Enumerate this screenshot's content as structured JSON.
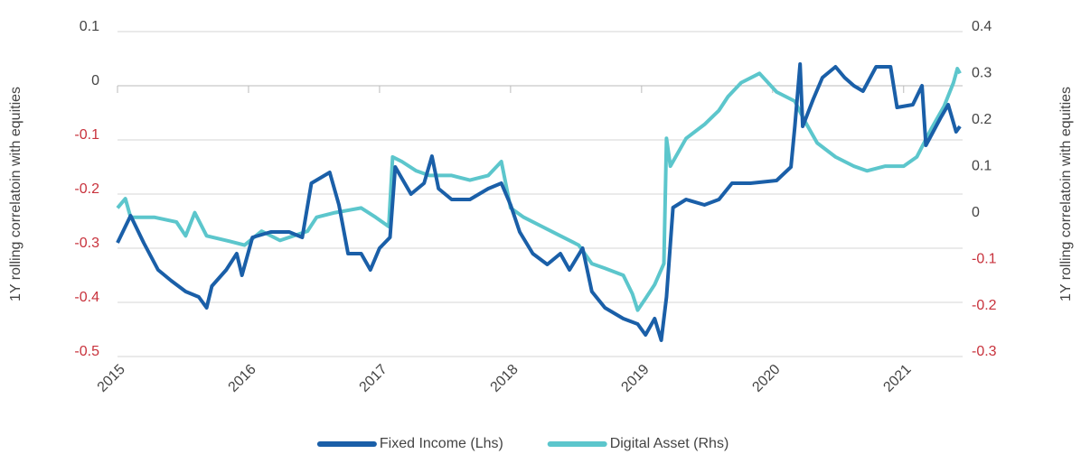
{
  "chart_data": {
    "type": "line",
    "y_label": "1Y rolling correlatoin with equities",
    "y2_label": "1Y rolling correlatoin with equities",
    "xlim": [
      2015,
      2021.45
    ],
    "xticks": [
      2015,
      2016,
      2017,
      2018,
      2019,
      2020,
      2021
    ],
    "ylim": [
      -0.5,
      0.1
    ],
    "yticks": [
      0.1,
      0,
      -0.1,
      -0.2,
      -0.3,
      -0.4,
      -0.5
    ],
    "y2lim": [
      -0.3,
      0.4
    ],
    "y2ticks": [
      0.4,
      0.3,
      0.2,
      0.1,
      0,
      -0.1,
      -0.2,
      -0.3
    ],
    "grid": true,
    "negative_tick_color": "#c8323c",
    "legend": "bottom",
    "series": [
      {
        "name": "Fixed Income (Lhs)",
        "color": "#1a5fa8",
        "x": [
          2015.0,
          2015.1,
          2015.2,
          2015.31,
          2015.41,
          2015.52,
          2015.62,
          2015.68,
          2015.72,
          2015.83,
          2015.91,
          2015.95,
          2016.03,
          2016.17,
          2016.31,
          2016.41,
          2016.48,
          2016.62,
          2016.69,
          2016.76,
          2016.86,
          2016.93,
          2017.0,
          2017.08,
          2017.12,
          2017.24,
          2017.34,
          2017.4,
          2017.45,
          2017.55,
          2017.69,
          2017.83,
          2017.93,
          2018.0,
          2018.07,
          2018.17,
          2018.28,
          2018.38,
          2018.45,
          2018.55,
          2018.62,
          2018.72,
          2018.86,
          2018.97,
          2019.03,
          2019.1,
          2019.15,
          2019.19,
          2019.24,
          2019.34,
          2019.48,
          2019.59,
          2019.69,
          2019.83,
          2020.03,
          2020.14,
          2020.17,
          2020.21,
          2020.23,
          2020.31,
          2020.38,
          2020.48,
          2020.55,
          2020.62,
          2020.69,
          2020.79,
          2020.9,
          2020.95,
          2021.07,
          2021.14,
          2021.17,
          2021.28,
          2021.34,
          2021.4,
          2021.43
        ],
        "values": [
          -0.29,
          -0.24,
          -0.29,
          -0.34,
          -0.36,
          -0.38,
          -0.39,
          -0.41,
          -0.37,
          -0.34,
          -0.31,
          -0.35,
          -0.28,
          -0.27,
          -0.27,
          -0.28,
          -0.18,
          -0.16,
          -0.22,
          -0.31,
          -0.31,
          -0.34,
          -0.3,
          -0.28,
          -0.15,
          -0.2,
          -0.18,
          -0.13,
          -0.19,
          -0.21,
          -0.21,
          -0.19,
          -0.18,
          -0.22,
          -0.27,
          -0.31,
          -0.33,
          -0.31,
          -0.34,
          -0.3,
          -0.38,
          -0.41,
          -0.43,
          -0.44,
          -0.46,
          -0.43,
          -0.47,
          -0.39,
          -0.225,
          -0.21,
          -0.22,
          -0.21,
          -0.18,
          -0.18,
          -0.175,
          -0.15,
          -0.075,
          0.04,
          -0.075,
          -0.025,
          0.015,
          0.035,
          0.015,
          0.0,
          -0.01,
          0.035,
          0.035,
          -0.04,
          -0.035,
          0.0,
          -0.11,
          -0.06,
          -0.035,
          -0.085,
          -0.075
        ]
      },
      {
        "name": "Digital Asset (Rhs)",
        "color": "#5cc6cc",
        "axis": "y2",
        "x": [
          2015.0,
          2015.06,
          2015.1,
          2015.28,
          2015.45,
          2015.52,
          2015.59,
          2015.68,
          2015.83,
          2015.97,
          2016.1,
          2016.24,
          2016.45,
          2016.52,
          2016.66,
          2016.86,
          2016.97,
          2017.07,
          2017.1,
          2017.17,
          2017.28,
          2017.38,
          2017.55,
          2017.69,
          2017.83,
          2017.93,
          2018.0,
          2018.1,
          2018.24,
          2018.38,
          2018.52,
          2018.62,
          2018.72,
          2018.86,
          2018.93,
          2018.97,
          2019.03,
          2019.1,
          2019.17,
          2019.19,
          2019.22,
          2019.34,
          2019.48,
          2019.59,
          2019.66,
          2019.76,
          2019.9,
          2020.03,
          2020.17,
          2020.24,
          2020.34,
          2020.48,
          2020.62,
          2020.72,
          2020.86,
          2021.0,
          2021.1,
          2021.21,
          2021.31,
          2021.38,
          2021.41,
          2021.43
        ],
        "values": [
          0.02,
          0.04,
          0.0,
          0.0,
          -0.01,
          -0.04,
          0.01,
          -0.04,
          -0.05,
          -0.06,
          -0.03,
          -0.05,
          -0.03,
          0.0,
          0.01,
          0.02,
          0.0,
          -0.02,
          0.13,
          0.12,
          0.1,
          0.09,
          0.09,
          0.08,
          0.09,
          0.12,
          0.02,
          0.0,
          -0.02,
          -0.04,
          -0.06,
          -0.1,
          -0.11,
          -0.125,
          -0.165,
          -0.2,
          -0.175,
          -0.145,
          -0.1,
          0.17,
          0.11,
          0.17,
          0.2,
          0.23,
          0.26,
          0.29,
          0.31,
          0.27,
          0.25,
          0.21,
          0.16,
          0.13,
          0.11,
          0.1,
          0.11,
          0.11,
          0.13,
          0.19,
          0.24,
          0.29,
          0.32,
          0.31
        ]
      }
    ]
  }
}
